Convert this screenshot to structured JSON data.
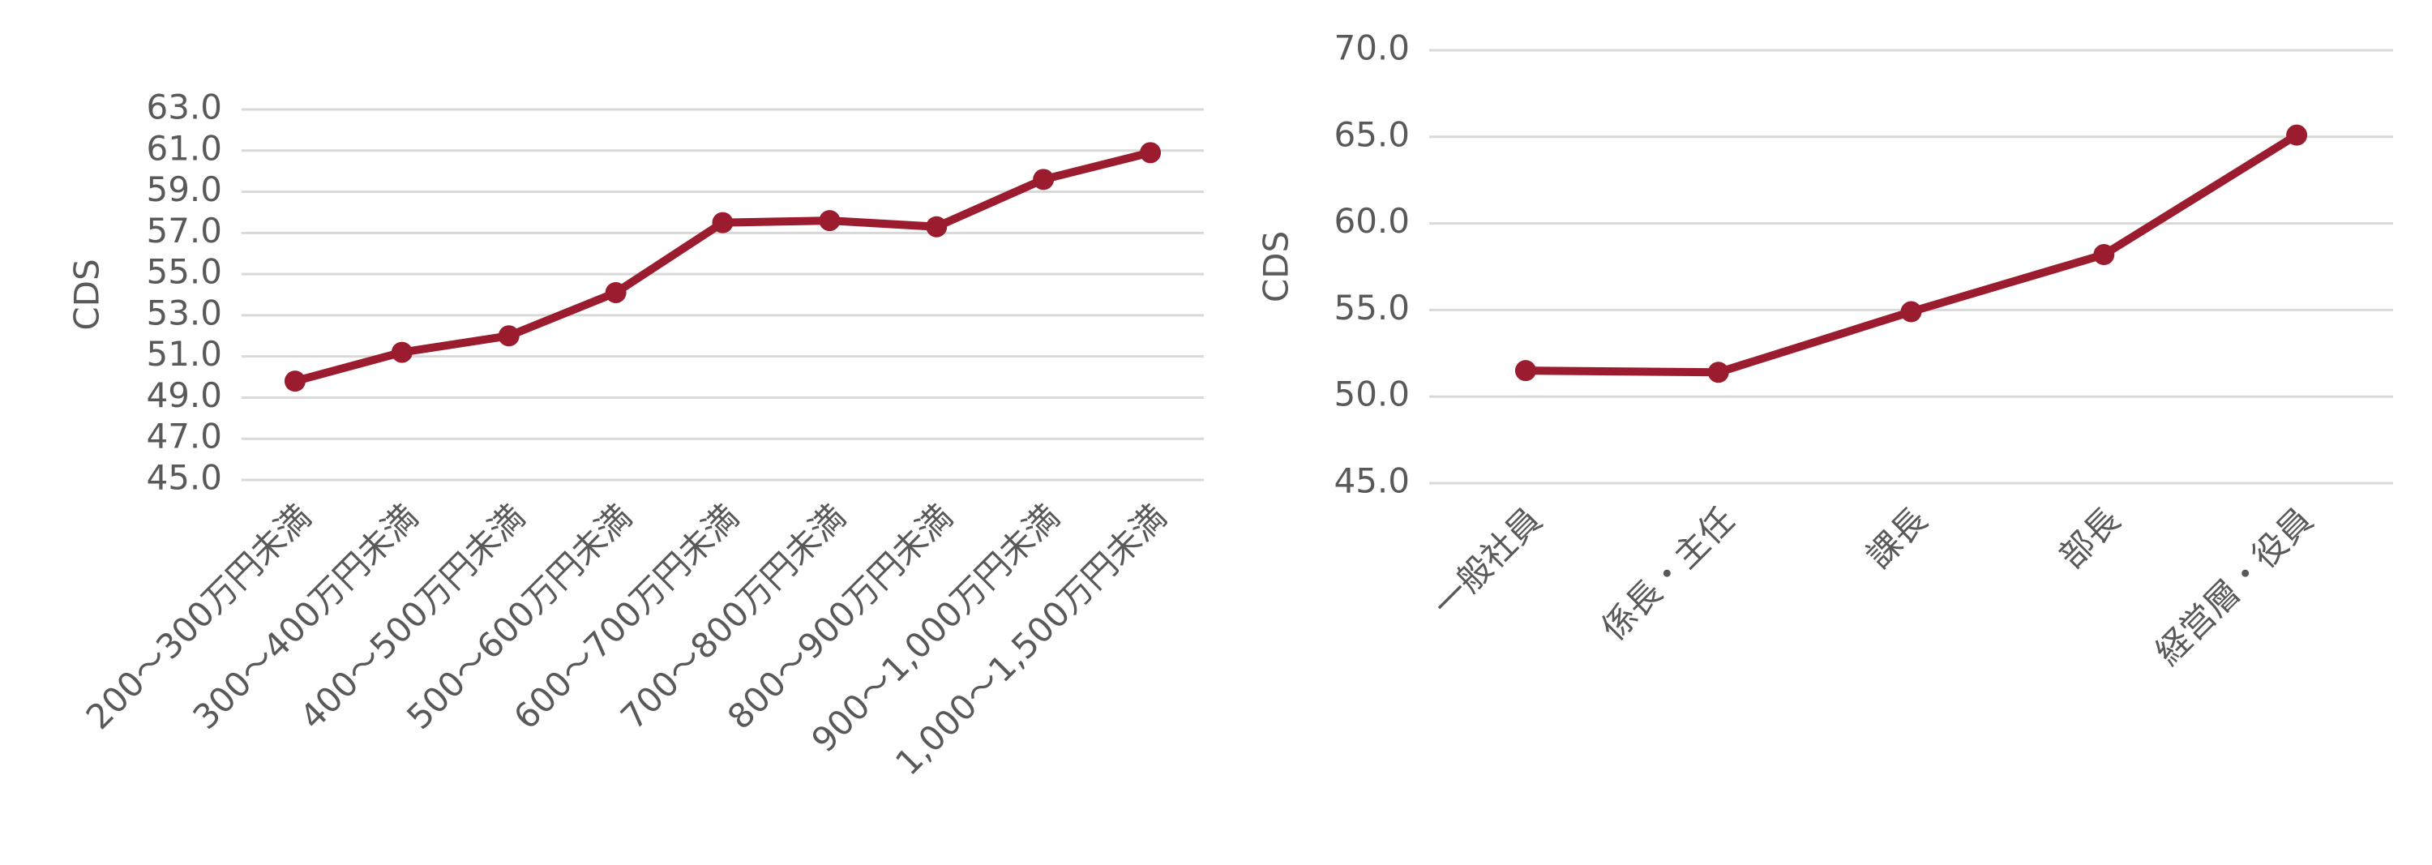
{
  "chart_data": [
    {
      "type": "line",
      "y_label": "CDS",
      "categories": [
        "200～300万円未満",
        "300～400万円未満",
        "400～500万円未満",
        "500～600万円未満",
        "600～700万円未満",
        "700～800万円未満",
        "800～900万円未満",
        "900～1,000万円未満",
        "1,000～1,500万円未満"
      ],
      "series": [
        {
          "color": "#9b1c2e",
          "values": [
            49.8,
            51.2,
            52.0,
            54.1,
            57.5,
            57.6,
            57.3,
            59.6,
            60.9
          ]
        }
      ],
      "ylim": [
        45,
        63
      ],
      "yticks": [
        {
          "value": 45,
          "label": "45.0"
        },
        {
          "value": 47,
          "label": "47.0"
        },
        {
          "value": 49,
          "label": "49.0"
        },
        {
          "value": 51,
          "label": "51.0"
        },
        {
          "value": 53,
          "label": "53.0"
        },
        {
          "value": 55,
          "label": "55.0"
        },
        {
          "value": 57,
          "label": "57.0"
        },
        {
          "value": 59,
          "label": "59.0"
        },
        {
          "value": 61,
          "label": "61.0"
        },
        {
          "value": 63,
          "label": "63.0"
        }
      ],
      "grid": true
    },
    {
      "type": "line",
      "y_label": "CDS",
      "categories": [
        "一般社員",
        "係長・主任",
        "課長",
        "部長",
        "経営層・役員"
      ],
      "series": [
        {
          "color": "#9b1c2e",
          "values": [
            51.5,
            51.4,
            54.9,
            58.2,
            65.1
          ]
        }
      ],
      "ylim": [
        45,
        70
      ],
      "yticks": [
        {
          "value": 45,
          "label": "45.0"
        },
        {
          "value": 50,
          "label": "50.0"
        },
        {
          "value": 55,
          "label": "55.0"
        },
        {
          "value": 60,
          "label": "60.0"
        },
        {
          "value": 65,
          "label": "65.0"
        },
        {
          "value": 70,
          "label": "70.0"
        }
      ],
      "grid": true
    }
  ]
}
